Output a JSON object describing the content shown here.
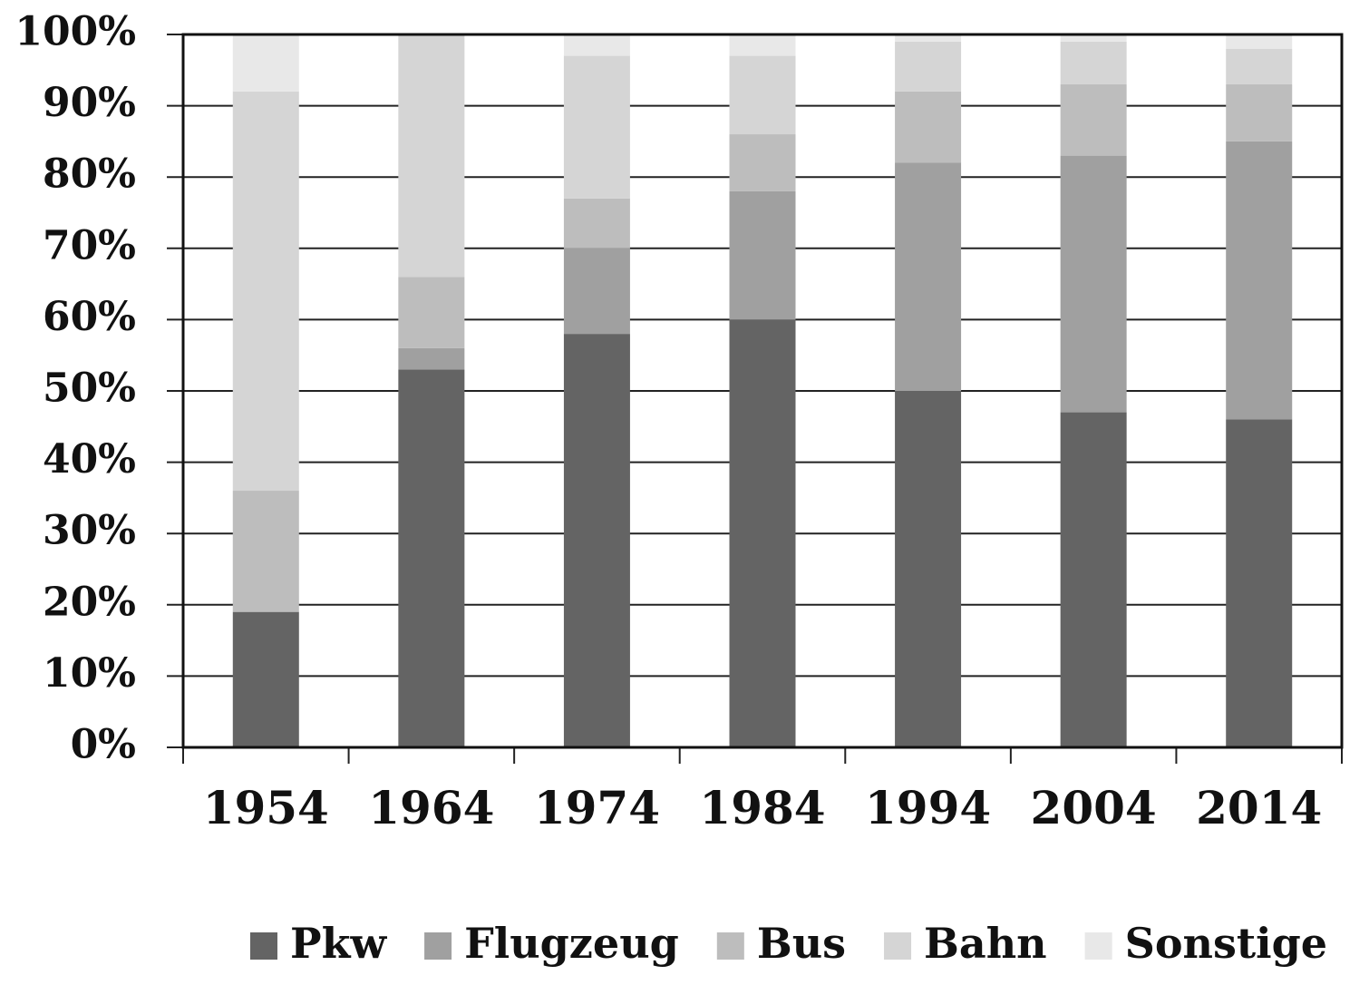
{
  "chart_data": {
    "type": "stacked_bar",
    "categories": [
      "1954",
      "1964",
      "1974",
      "1984",
      "1994",
      "2004",
      "2014"
    ],
    "series": [
      {
        "name": "Pkw",
        "color": "#646464",
        "values": [
          19,
          53,
          58,
          60,
          50,
          47,
          46
        ]
      },
      {
        "name": "Flugzeug",
        "color": "#a0a0a0",
        "values": [
          0,
          3,
          12,
          18,
          32,
          36,
          39
        ]
      },
      {
        "name": "Bus",
        "color": "#bdbdbd",
        "values": [
          17,
          10,
          7,
          8,
          10,
          10,
          8
        ]
      },
      {
        "name": "Bahn",
        "color": "#d5d5d5",
        "values": [
          56,
          34,
          20,
          11,
          7,
          6,
          5
        ]
      },
      {
        "name": "Sonstige",
        "color": "#e8e8e8",
        "values": [
          8,
          0,
          3,
          3,
          1,
          1,
          2
        ]
      }
    ],
    "ylim": [
      0,
      100
    ],
    "yticks": [
      {
        "value": 0,
        "label": "0%"
      },
      {
        "value": 10,
        "label": "10%"
      },
      {
        "value": 20,
        "label": "20%"
      },
      {
        "value": 30,
        "label": "30%"
      },
      {
        "value": 40,
        "label": "40%"
      },
      {
        "value": 50,
        "label": "50%"
      },
      {
        "value": 60,
        "label": "60%"
      },
      {
        "value": 70,
        "label": "70%"
      },
      {
        "value": 80,
        "label": "80%"
      },
      {
        "value": 90,
        "label": "90%"
      },
      {
        "value": 100,
        "label": "100%"
      }
    ],
    "grid": true,
    "legend": "bottom"
  }
}
